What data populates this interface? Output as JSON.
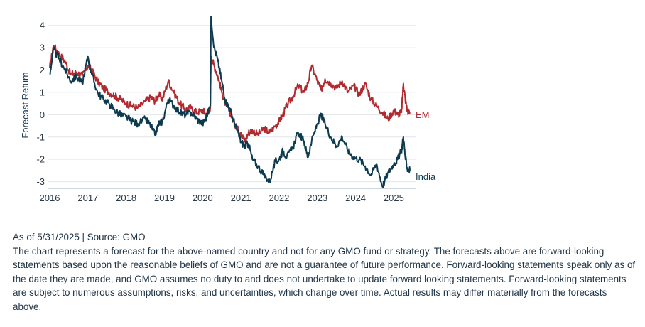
{
  "chart_data": {
    "type": "line",
    "title": "",
    "xlabel": "",
    "ylabel": "Forecast Return",
    "ylim": [
      -3.3,
      4.5
    ],
    "xlim": [
      2016.0,
      2025.55
    ],
    "yticks": [
      "4",
      "3",
      "2",
      "1",
      "0",
      "-1",
      "-2",
      "-3"
    ],
    "ytick_values": [
      4,
      3,
      2,
      1,
      0,
      -1,
      -2,
      -3
    ],
    "xticks": [
      "2016",
      "2017",
      "2018",
      "2019",
      "2020",
      "2021",
      "2022",
      "2023",
      "2024",
      "2025"
    ],
    "xtick_values": [
      2016,
      2017,
      2018,
      2019,
      2020,
      2021,
      2022,
      2023,
      2024,
      2025
    ],
    "grid": "horizontal",
    "series": [
      {
        "name": "EM",
        "color": "#b02a2f",
        "x": [
          2016.0,
          2016.1,
          2016.25,
          2016.4,
          2016.55,
          2016.7,
          2016.85,
          2017.0,
          2017.1,
          2017.25,
          2017.4,
          2017.55,
          2017.7,
          2017.85,
          2018.0,
          2018.15,
          2018.3,
          2018.5,
          2018.65,
          2018.75,
          2018.85,
          2018.95,
          2019.1,
          2019.25,
          2019.4,
          2019.55,
          2019.7,
          2019.85,
          2020.0,
          2020.1,
          2020.2,
          2020.22,
          2020.3,
          2020.4,
          2020.5,
          2020.6,
          2020.7,
          2020.8,
          2020.9,
          2021.0,
          2021.1,
          2021.2,
          2021.3,
          2021.45,
          2021.6,
          2021.75,
          2021.9,
          2022.0,
          2022.1,
          2022.2,
          2022.35,
          2022.5,
          2022.65,
          2022.75,
          2022.85,
          2023.0,
          2023.1,
          2023.2,
          2023.35,
          2023.5,
          2023.65,
          2023.8,
          2023.95,
          2024.1,
          2024.25,
          2024.4,
          2024.55,
          2024.7,
          2024.85,
          2025.0,
          2025.1,
          2025.2,
          2025.25,
          2025.3,
          2025.35,
          2025.42
        ],
        "y": [
          2.1,
          3.1,
          2.7,
          2.4,
          1.8,
          1.9,
          1.75,
          2.2,
          2.0,
          1.5,
          1.2,
          1.0,
          0.85,
          0.7,
          0.5,
          0.4,
          0.3,
          0.6,
          0.8,
          0.6,
          0.9,
          0.7,
          1.5,
          1.0,
          0.5,
          0.25,
          0.3,
          0.1,
          0.2,
          0.0,
          0.3,
          2.6,
          2.2,
          1.7,
          1.0,
          0.5,
          0.2,
          -0.3,
          -0.6,
          -0.8,
          -1.2,
          -0.8,
          -0.7,
          -0.9,
          -0.6,
          -0.8,
          -0.5,
          -0.3,
          0.0,
          0.4,
          0.8,
          1.3,
          1.0,
          1.4,
          2.2,
          1.5,
          1.1,
          1.6,
          1.4,
          1.2,
          1.5,
          1.0,
          1.3,
          0.9,
          1.4,
          0.7,
          0.4,
          0.1,
          -0.2,
          0.2,
          0.0,
          0.1,
          1.4,
          0.7,
          0.2,
          0.05
        ]
      },
      {
        "name": "India",
        "color": "#0d3a4f",
        "x": [
          2016.0,
          2016.1,
          2016.25,
          2016.4,
          2016.55,
          2016.7,
          2016.85,
          2017.0,
          2017.1,
          2017.25,
          2017.4,
          2017.55,
          2017.7,
          2017.85,
          2018.0,
          2018.15,
          2018.3,
          2018.5,
          2018.65,
          2018.75,
          2018.85,
          2018.95,
          2019.1,
          2019.25,
          2019.4,
          2019.55,
          2019.7,
          2019.85,
          2020.0,
          2020.1,
          2020.2,
          2020.22,
          2020.3,
          2020.4,
          2020.5,
          2020.6,
          2020.7,
          2020.8,
          2020.9,
          2021.0,
          2021.1,
          2021.2,
          2021.3,
          2021.45,
          2021.6,
          2021.75,
          2021.9,
          2022.0,
          2022.1,
          2022.2,
          2022.35,
          2022.5,
          2022.65,
          2022.75,
          2022.85,
          2023.0,
          2023.1,
          2023.2,
          2023.35,
          2023.5,
          2023.65,
          2023.8,
          2023.95,
          2024.1,
          2024.25,
          2024.4,
          2024.55,
          2024.7,
          2024.85,
          2025.0,
          2025.1,
          2025.2,
          2025.25,
          2025.3,
          2025.35,
          2025.42
        ],
        "y": [
          1.8,
          2.9,
          2.5,
          2.0,
          1.5,
          1.7,
          1.4,
          2.6,
          1.8,
          1.0,
          0.7,
          0.5,
          0.2,
          0.0,
          -0.1,
          -0.3,
          -0.4,
          -0.2,
          -0.5,
          -0.9,
          -0.4,
          -0.3,
          0.7,
          0.4,
          0.1,
          0.0,
          0.1,
          -0.2,
          -0.4,
          -0.1,
          0.4,
          4.4,
          3.0,
          2.4,
          1.5,
          0.6,
          0.3,
          -0.2,
          -0.7,
          -1.2,
          -1.4,
          -1.3,
          -2.0,
          -2.3,
          -2.7,
          -3.0,
          -2.1,
          -2.0,
          -1.6,
          -1.9,
          -1.5,
          -0.8,
          -1.2,
          -1.9,
          -1.2,
          -0.4,
          0.0,
          -0.4,
          -1.0,
          -1.4,
          -1.0,
          -1.6,
          -1.9,
          -2.0,
          -2.3,
          -2.7,
          -2.2,
          -3.2,
          -2.6,
          -2.2,
          -2.0,
          -1.6,
          -1.0,
          -1.9,
          -2.4,
          -2.5
        ]
      }
    ]
  },
  "notes": {
    "source": "As of 5/31/2025 | Source: GMO",
    "disclaimer": "The chart represents a forecast for the above-named country and not for any GMO fund or strategy. The forecasts above are forward-looking statements based upon the reasonable beliefs of GMO and are not a guarantee of future performance. Forward-looking statements speak only as of the date they are made, and GMO assumes no duty to and does not undertake to update forward looking statements. Forward-looking statements are subject to numerous assumptions, risks, and uncertainties, which change over time. Actual results may differ materially from the forecasts above."
  }
}
